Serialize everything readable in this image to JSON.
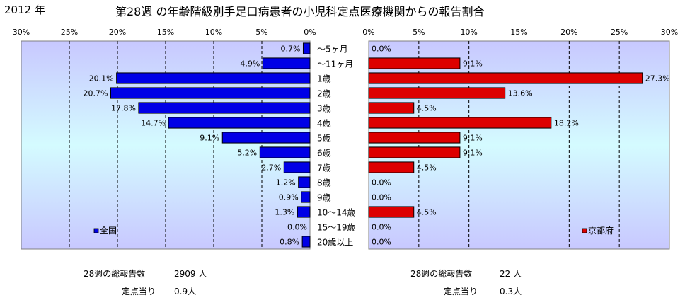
{
  "header": {
    "year": "2012 年",
    "title": "第28週 の年齢階級別手足口病患者の小児科定点医療機関からの報告割合"
  },
  "colors": {
    "national_bar": "#0000e6",
    "kyoto_bar": "#dd0000",
    "plot_bg_top": "#c8c8ff",
    "plot_bg_mid": "#d4fbff",
    "gridline": "#000000"
  },
  "chart_data": [
    {
      "type": "bar",
      "orientation": "horizontal",
      "direction": "right-to-left",
      "categories": [
        "～5ヶ月",
        "～11ヶ月",
        "1歳",
        "2歳",
        "3歳",
        "4歳",
        "5歳",
        "6歳",
        "7歳",
        "8歳",
        "9歳",
        "10～14歳",
        "15～19歳",
        "20歳以上"
      ],
      "series": [
        {
          "name": "全国",
          "values": [
            0.7,
            4.9,
            20.1,
            20.7,
            17.8,
            14.7,
            9.1,
            5.2,
            2.7,
            1.2,
            0.9,
            1.3,
            0.0,
            0.8
          ],
          "labels": [
            "0.7%",
            "4.9%",
            "20.1%",
            "20.7%",
            "17.8%",
            "14.7%",
            "9.1%",
            "5.2%",
            "2.7%",
            "1.2%",
            "0.9%",
            "1.3%",
            "0.0%",
            "0.8%"
          ]
        }
      ],
      "xlim": [
        0,
        30
      ],
      "xticks": [
        "30%",
        "25%",
        "20%",
        "15%",
        "10%",
        "5%",
        "0%"
      ],
      "legend_position": "bottom-left",
      "grid": true
    },
    {
      "type": "bar",
      "orientation": "horizontal",
      "direction": "left-to-right",
      "categories": [
        "～5ヶ月",
        "～11ヶ月",
        "1歳",
        "2歳",
        "3歳",
        "4歳",
        "5歳",
        "6歳",
        "7歳",
        "8歳",
        "9歳",
        "10～14歳",
        "15～19歳",
        "20歳以上"
      ],
      "series": [
        {
          "name": "京都府",
          "values": [
            0.0,
            9.1,
            27.3,
            13.6,
            4.5,
            18.2,
            9.1,
            9.1,
            4.5,
            0.0,
            0.0,
            4.5,
            0.0,
            0.0
          ],
          "labels": [
            "0.0%",
            "9.1%",
            "27.3%",
            "13.6%",
            "4.5%",
            "18.2%",
            "9.1%",
            "9.1%",
            "4.5%",
            "0.0%",
            "0.0%",
            "4.5%",
            "0.0%",
            "0.0%"
          ]
        }
      ],
      "xlim": [
        0,
        30
      ],
      "xticks": [
        "0%",
        "5%",
        "10%",
        "15%",
        "20%",
        "25%",
        "30%"
      ],
      "legend_position": "bottom-right",
      "grid": true
    }
  ],
  "footer": {
    "national": {
      "total_label": "28週の総報告数",
      "total_value": "2909 人",
      "per_label": "定点当り",
      "per_value": "0.9人"
    },
    "kyoto": {
      "total_label": "28週の総報告数",
      "total_value": "22 人",
      "per_label": "定点当り",
      "per_value": "0.3人"
    }
  }
}
